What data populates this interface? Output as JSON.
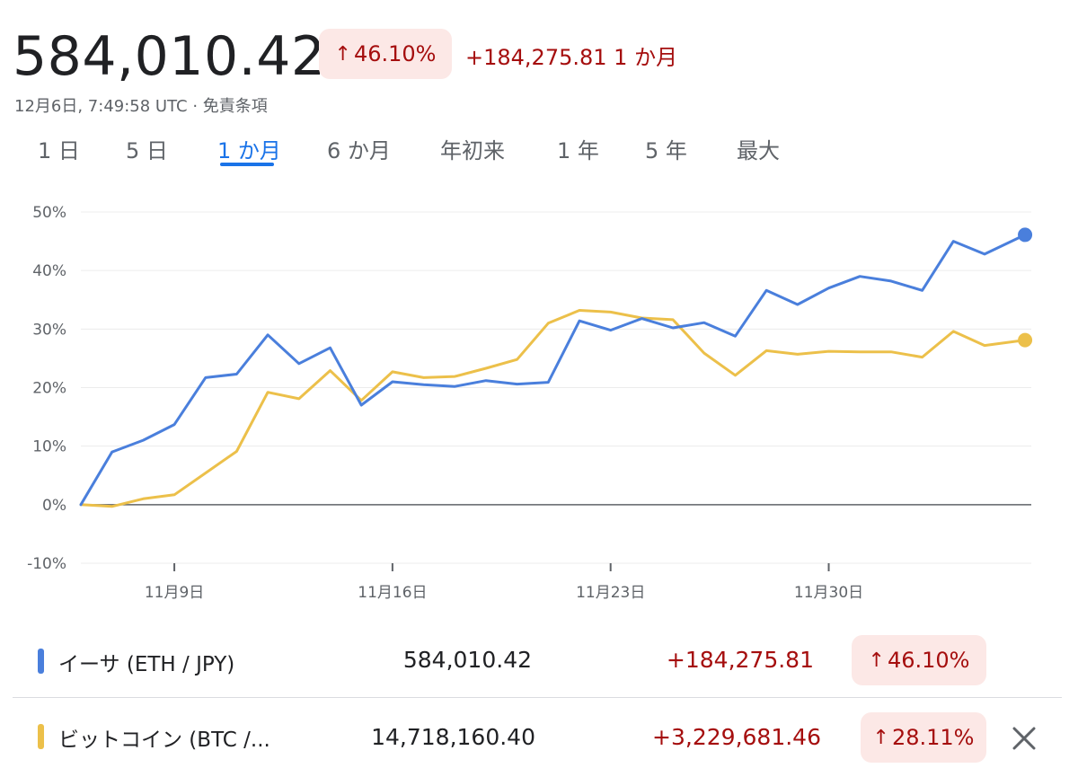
{
  "header": {
    "price": "584,010.42",
    "percent_change": "46.10%",
    "abs_change": "+184,275.81",
    "period": "1 か月",
    "timestamp": "12月6日, 7:49:58 UTC · 免責条項"
  },
  "tabs": [
    "1 日",
    "5 日",
    "1 か月",
    "6 か月",
    "年初来",
    "1 年",
    "5 年",
    "最大"
  ],
  "active_tab": "1 か月",
  "colors": {
    "accent": "#1a73e8",
    "eth": "#4a7fdc",
    "btc": "#ecc04a",
    "negative_text": "#a50e0e",
    "badge_bg": "#fce8e6"
  },
  "chart_data": {
    "type": "line",
    "y_ticks": [
      "50%",
      "40%",
      "30%",
      "20%",
      "10%",
      "0%",
      "-10%"
    ],
    "ylim": [
      -10,
      50
    ],
    "xlim": [
      0,
      30.5
    ],
    "x_ticks": [
      {
        "label": "11月9日",
        "x": 3
      },
      {
        "label": "11月16日",
        "x": 10
      },
      {
        "label": "11月23日",
        "x": 17
      },
      {
        "label": "11月30日",
        "x": 24
      }
    ],
    "grid": true,
    "series": [
      {
        "name": "イーサ (ETH / JPY)",
        "color": "#4a7fdc",
        "x": [
          0,
          1,
          2,
          3,
          4,
          5,
          6,
          7,
          8,
          9,
          10,
          11,
          12,
          13,
          14,
          15,
          16,
          17,
          18,
          19,
          20,
          21,
          22,
          23,
          24,
          25,
          26,
          27,
          28,
          29,
          30.3
        ],
        "values": [
          0,
          9,
          11,
          13.7,
          21.7,
          22.3,
          29,
          24.1,
          26.8,
          17,
          21,
          20.5,
          20.2,
          21.2,
          20.6,
          20.9,
          31.4,
          29.8,
          31.8,
          30.2,
          31.1,
          28.8,
          36.6,
          34.2,
          37,
          39,
          38.2,
          36.6,
          45,
          42.8,
          46.1
        ]
      },
      {
        "name": "ビットコイン (BTC / JPY)",
        "color": "#ecc04a",
        "x": [
          0,
          1,
          2,
          3,
          4,
          5,
          6,
          7,
          8,
          9,
          10,
          11,
          12,
          13,
          14,
          15,
          16,
          17,
          18,
          19,
          20,
          21,
          22,
          23,
          24,
          25,
          26,
          27,
          28,
          29,
          30.3
        ],
        "values": [
          0,
          -0.3,
          1,
          1.7,
          5.4,
          9.1,
          19.2,
          18.1,
          22.9,
          17.8,
          22.7,
          21.7,
          21.9,
          23.3,
          24.8,
          31,
          33.2,
          32.9,
          31.9,
          31.6,
          25.9,
          22.1,
          26.3,
          25.7,
          26.2,
          26.1,
          26.1,
          25.2,
          29.6,
          27.2,
          28.11
        ]
      }
    ]
  },
  "rows": [
    {
      "name": "イーサ (ETH / JPY)",
      "price": "584,010.42",
      "change": "+184,275.81",
      "percent": "46.10%",
      "color": "#4a7fdc"
    },
    {
      "name": "ビットコイン (BTC /...",
      "price": "14,718,160.40",
      "change": "+3,229,681.46",
      "percent": "28.11%",
      "color": "#ecc04a"
    }
  ],
  "icons": {
    "up_arrow": "arrow-up-icon",
    "close": "close-icon"
  }
}
